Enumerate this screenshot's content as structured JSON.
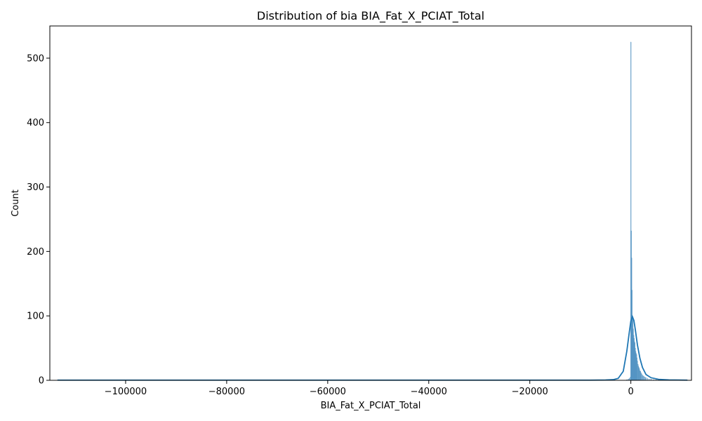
{
  "chart_data": {
    "type": "bar",
    "title": "Distribution of bia BIA_Fat_X_PCIAT_Total",
    "xlabel": "BIA_Fat_X_PCIAT_Total",
    "ylabel": "Count",
    "xlim": [
      -115000,
      12000
    ],
    "ylim": [
      0,
      550
    ],
    "xticks": [
      -100000,
      -80000,
      -60000,
      -40000,
      -20000,
      0
    ],
    "xtick_labels": [
      "−100000",
      "−80000",
      "−60000",
      "−40000",
      "−20000",
      "0"
    ],
    "yticks": [
      0,
      100,
      200,
      300,
      400,
      500
    ],
    "ytick_labels": [
      "0",
      "100",
      "200",
      "300",
      "400",
      "500"
    ],
    "grid": false,
    "legend": "none",
    "colors": {
      "bar": "#4c8fc0",
      "kde": "#1f77b4"
    },
    "histogram": [
      {
        "x": -1400,
        "count": 0
      },
      {
        "x": -800,
        "count": 1
      },
      {
        "x": -500,
        "count": 2
      },
      {
        "x": -300,
        "count": 3
      },
      {
        "x": -100,
        "count": 5
      },
      {
        "x": 0,
        "count": 525
      },
      {
        "x": 80,
        "count": 232
      },
      {
        "x": 150,
        "count": 190
      },
      {
        "x": 230,
        "count": 140
      },
      {
        "x": 310,
        "count": 100
      },
      {
        "x": 400,
        "count": 95
      },
      {
        "x": 480,
        "count": 80
      },
      {
        "x": 560,
        "count": 70
      },
      {
        "x": 640,
        "count": 65
      },
      {
        "x": 720,
        "count": 60
      },
      {
        "x": 800,
        "count": 58
      },
      {
        "x": 880,
        "count": 50
      },
      {
        "x": 960,
        "count": 45
      },
      {
        "x": 1040,
        "count": 42
      },
      {
        "x": 1120,
        "count": 40
      },
      {
        "x": 1200,
        "count": 35
      },
      {
        "x": 1300,
        "count": 30
      },
      {
        "x": 1400,
        "count": 25
      },
      {
        "x": 1500,
        "count": 22
      },
      {
        "x": 1600,
        "count": 20
      },
      {
        "x": 1700,
        "count": 18
      },
      {
        "x": 1800,
        "count": 15
      },
      {
        "x": 1900,
        "count": 14
      },
      {
        "x": 2000,
        "count": 12
      },
      {
        "x": 2150,
        "count": 10
      },
      {
        "x": 2300,
        "count": 8
      },
      {
        "x": 2450,
        "count": 7
      },
      {
        "x": 2600,
        "count": 6
      },
      {
        "x": 2800,
        "count": 5
      },
      {
        "x": 3000,
        "count": 4
      },
      {
        "x": 3300,
        "count": 3
      },
      {
        "x": 3600,
        "count": 2
      },
      {
        "x": 4000,
        "count": 2
      },
      {
        "x": 4500,
        "count": 1
      },
      {
        "x": 5000,
        "count": 1
      },
      {
        "x": 6000,
        "count": 1
      }
    ],
    "kde": {
      "x": [
        -113500,
        -100000,
        -80000,
        -60000,
        -40000,
        -20000,
        -8000,
        -5000,
        -3500,
        -2500,
        -1500,
        -800,
        -300,
        0,
        300,
        600,
        900,
        1300,
        1800,
        2300,
        3000,
        4000,
        5500,
        7500,
        11200
      ],
      "y": [
        0.3,
        0.3,
        0.3,
        0.3,
        0.3,
        0.3,
        0.3,
        0.5,
        1,
        3,
        14,
        45,
        75,
        92,
        99,
        93,
        78,
        55,
        34,
        20,
        9,
        4,
        1.5,
        0.6,
        0.3
      ]
    }
  }
}
